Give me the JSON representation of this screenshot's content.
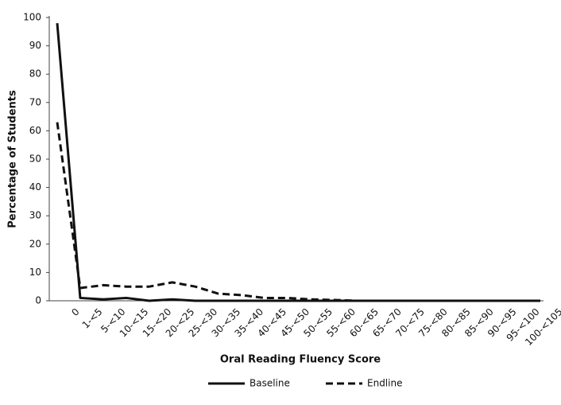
{
  "chart_data": {
    "type": "line",
    "x_label": "Oral Reading Fluency Score",
    "y_label": "Percentage of Students",
    "categories": [
      "0",
      "1-<5",
      "5-<10",
      "10-<15",
      "15-<20",
      "20-<25",
      "25-<30",
      "30-<35",
      "35-<40",
      "40-<45",
      "45-<50",
      "50-<55",
      "55-<60",
      "60-<65",
      "65-<70",
      "70-<75",
      "75-<80",
      "80-<85",
      "85-<90",
      "90-<95",
      "95-<100",
      "100-<105"
    ],
    "series": [
      {
        "name": "Baseline",
        "color": "#111111",
        "line_style": "solid",
        "values": [
          98,
          1,
          0.5,
          1,
          0,
          0.5,
          0,
          0,
          0,
          0,
          0,
          0,
          0,
          0,
          0,
          0,
          0,
          0,
          0,
          0,
          0,
          0
        ]
      },
      {
        "name": "Endline",
        "color": "#111111",
        "line_style": "dashed",
        "values": [
          63,
          4.5,
          5.5,
          5,
          5,
          6.5,
          5,
          2.5,
          2,
          1,
          1,
          0.5,
          0.3,
          0,
          0,
          0,
          0,
          0,
          0,
          0,
          0,
          0
        ]
      }
    ],
    "ylim": [
      0,
      100
    ],
    "yticks": [
      0,
      10,
      20,
      30,
      40,
      50,
      60,
      70,
      80,
      90,
      100
    ],
    "grid": false,
    "legend": "bottom"
  }
}
